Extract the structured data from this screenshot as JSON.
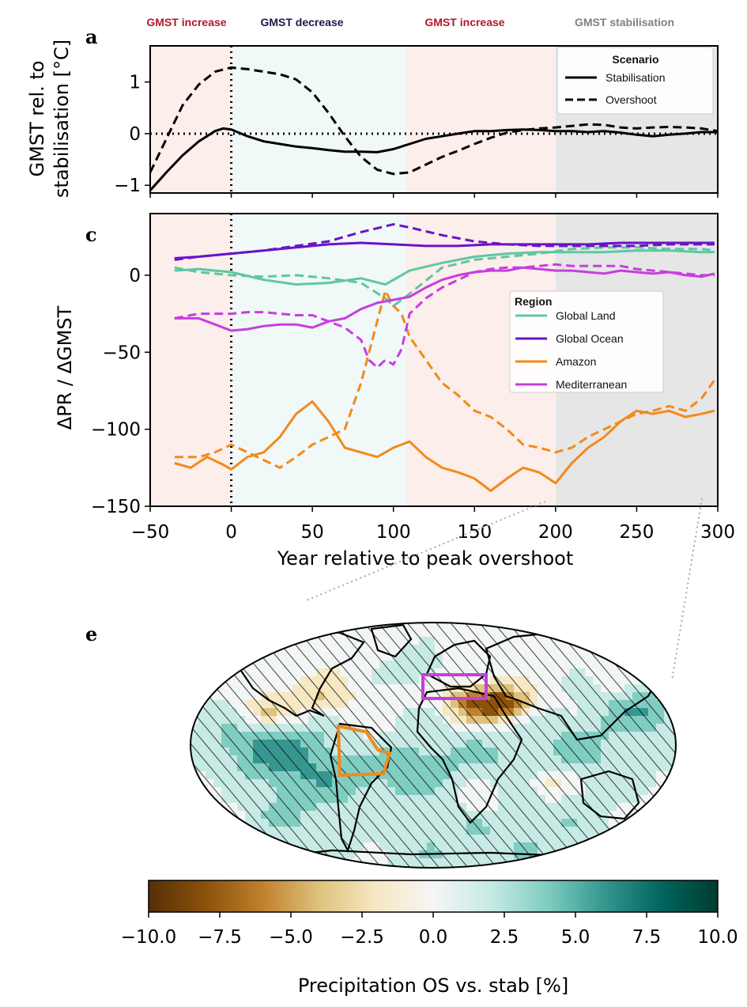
{
  "phases": [
    {
      "label": "GMST increase",
      "color": "#b2182b"
    },
    {
      "label": "GMST decrease",
      "color": "#1a1a4e"
    },
    {
      "label": "GMST increase",
      "color": "#b2182b"
    },
    {
      "label": "GMST stabilisation",
      "color": "#808080"
    }
  ],
  "colors": {
    "increase_bg": "#fbeeeb",
    "decrease_bg": "#f0f8f8",
    "stabilisation_bg": "#e6e6e6"
  },
  "panel_labels": {
    "a": "a",
    "c": "c",
    "e": "e"
  },
  "xaxis": {
    "label": "Year relative to peak overshoot",
    "ticks": [
      -50,
      0,
      50,
      100,
      150,
      200,
      250,
      300
    ],
    "tick_labels": [
      "−50",
      "0",
      "50",
      "100",
      "150",
      "200",
      "250",
      "300"
    ],
    "xlim": [
      -50,
      300
    ]
  },
  "chart_data": [
    {
      "id": "a",
      "type": "line",
      "ylabel_lines": [
        "GMST rel. to",
        "stabilisation [°C]"
      ],
      "ylim": [
        -1.15,
        1.7
      ],
      "yticks": [
        -1,
        0,
        1
      ],
      "ytick_labels": [
        "−1",
        "0",
        "1"
      ],
      "phase_bounds": [
        -50,
        0,
        108,
        200,
        300
      ],
      "legend": {
        "title": "Scenario",
        "entries": [
          {
            "label": "Stabilisation",
            "style": "solid"
          },
          {
            "label": "Overshoot",
            "style": "dashed"
          }
        ]
      },
      "series": [
        {
          "name": "Stabilisation",
          "style": "solid",
          "color": "#000000",
          "x": [
            -50,
            -40,
            -30,
            -20,
            -10,
            -5,
            0,
            10,
            20,
            30,
            40,
            50,
            60,
            70,
            80,
            90,
            100,
            110,
            120,
            130,
            140,
            150,
            160,
            170,
            180,
            190,
            200,
            210,
            220,
            230,
            240,
            250,
            260,
            270,
            280,
            290,
            300
          ],
          "y": [
            -1.1,
            -0.75,
            -0.42,
            -0.15,
            0.05,
            0.1,
            0.08,
            -0.05,
            -0.15,
            -0.2,
            -0.25,
            -0.28,
            -0.32,
            -0.35,
            -0.35,
            -0.36,
            -0.3,
            -0.2,
            -0.1,
            -0.05,
            0.0,
            0.05,
            0.05,
            0.07,
            0.08,
            0.07,
            0.05,
            0.05,
            0.03,
            0.05,
            0.02,
            -0.02,
            -0.05,
            -0.02,
            0.0,
            0.03,
            0.03
          ]
        },
        {
          "name": "Overshoot",
          "style": "dashed",
          "color": "#000000",
          "x": [
            -50,
            -40,
            -30,
            -20,
            -10,
            0,
            10,
            20,
            30,
            40,
            50,
            60,
            70,
            80,
            90,
            100,
            110,
            120,
            130,
            140,
            150,
            160,
            170,
            180,
            190,
            200,
            210,
            220,
            230,
            240,
            250,
            260,
            270,
            280,
            290,
            300
          ],
          "y": [
            -0.75,
            -0.1,
            0.55,
            0.95,
            1.2,
            1.28,
            1.25,
            1.2,
            1.15,
            1.05,
            0.8,
            0.4,
            -0.05,
            -0.45,
            -0.7,
            -0.78,
            -0.75,
            -0.6,
            -0.45,
            -0.33,
            -0.2,
            -0.08,
            0.02,
            0.07,
            0.1,
            0.12,
            0.15,
            0.18,
            0.17,
            0.12,
            0.1,
            0.12,
            0.13,
            0.12,
            0.1,
            0.05
          ]
        }
      ]
    },
    {
      "id": "c",
      "type": "line",
      "ylabel": "ΔPR / ΔGMST",
      "ylim": [
        -150,
        40
      ],
      "yticks": [
        -150,
        -100,
        -50,
        0
      ],
      "ytick_labels": [
        "−150",
        "−100",
        "−50",
        "0"
      ],
      "phase_bounds": [
        -50,
        0,
        108,
        200,
        300
      ],
      "legend": {
        "title": "Region",
        "entries": [
          {
            "label": "Global Land",
            "color": "#5fc7a2"
          },
          {
            "label": "Global Ocean",
            "color": "#6a14c8"
          },
          {
            "label": "Amazon",
            "color": "#f28a1a"
          },
          {
            "label": "Mediterranean",
            "color": "#c83de0"
          }
        ]
      },
      "series": [
        {
          "name": "Global Land",
          "scenario": "Stabilisation",
          "color": "#5fc7a2",
          "style": "solid",
          "x": [
            -35,
            -20,
            0,
            20,
            40,
            60,
            80,
            95,
            110,
            130,
            150,
            170,
            190,
            210,
            230,
            250,
            270,
            290,
            298
          ],
          "y": [
            3,
            4,
            2,
            -3,
            -6,
            -5,
            -2,
            -6,
            3,
            8,
            12,
            14,
            15,
            15,
            15,
            16,
            16,
            15,
            15
          ]
        },
        {
          "name": "Global Land",
          "scenario": "Overshoot",
          "color": "#5fc7a2",
          "style": "dashed",
          "x": [
            -35,
            -20,
            0,
            20,
            40,
            60,
            80,
            95,
            100,
            110,
            130,
            150,
            170,
            190,
            210,
            230,
            250,
            270,
            290,
            298
          ],
          "y": [
            5,
            2,
            0,
            -1,
            0,
            -2,
            -5,
            -15,
            -20,
            -12,
            5,
            10,
            12,
            14,
            17,
            18,
            18,
            17,
            17,
            16
          ]
        },
        {
          "name": "Global Ocean",
          "scenario": "Stabilisation",
          "color": "#6a14c8",
          "style": "solid",
          "x": [
            -35,
            -20,
            0,
            20,
            40,
            60,
            80,
            100,
            120,
            140,
            160,
            180,
            200,
            220,
            240,
            260,
            280,
            298
          ],
          "y": [
            11,
            12,
            14,
            16,
            18,
            20,
            21,
            20,
            19,
            19,
            20,
            20,
            20,
            20,
            21,
            21,
            21,
            21
          ]
        },
        {
          "name": "Global Ocean",
          "scenario": "Overshoot",
          "color": "#6a14c8",
          "style": "dashed",
          "x": [
            -35,
            -20,
            0,
            20,
            40,
            60,
            80,
            100,
            110,
            130,
            150,
            170,
            190,
            210,
            230,
            250,
            270,
            290,
            298
          ],
          "y": [
            10,
            12,
            14,
            16,
            19,
            22,
            28,
            33,
            31,
            26,
            22,
            20,
            19,
            19,
            19,
            19,
            20,
            20,
            20
          ]
        },
        {
          "name": "Amazon",
          "scenario": "Stabilisation",
          "color": "#f28a1a",
          "style": "solid",
          "x": [
            -35,
            -25,
            -15,
            -5,
            0,
            10,
            20,
            30,
            40,
            50,
            60,
            70,
            80,
            90,
            100,
            110,
            120,
            130,
            140,
            150,
            160,
            170,
            180,
            190,
            200,
            210,
            220,
            230,
            240,
            250,
            260,
            270,
            280,
            290,
            298
          ],
          "y": [
            -122,
            -125,
            -118,
            -123,
            -126,
            -118,
            -115,
            -105,
            -90,
            -82,
            -95,
            -112,
            -115,
            -118,
            -112,
            -108,
            -118,
            -125,
            -128,
            -132,
            -140,
            -132,
            -125,
            -128,
            -135,
            -122,
            -112,
            -105,
            -95,
            -88,
            -90,
            -88,
            -92,
            -90,
            -88
          ]
        },
        {
          "name": "Amazon",
          "scenario": "Overshoot",
          "color": "#f28a1a",
          "style": "dashed",
          "x": [
            -35,
            -20,
            -10,
            0,
            10,
            20,
            30,
            40,
            50,
            60,
            70,
            80,
            90,
            95,
            100,
            105,
            110,
            120,
            130,
            140,
            150,
            160,
            170,
            180,
            190,
            200,
            210,
            220,
            230,
            240,
            250,
            260,
            270,
            280,
            290,
            298
          ],
          "y": [
            -118,
            -118,
            -115,
            -110,
            -115,
            -120,
            -125,
            -118,
            -110,
            -105,
            -100,
            -70,
            -30,
            -10,
            -20,
            -25,
            -40,
            -55,
            -70,
            -78,
            -88,
            -92,
            -100,
            -110,
            -112,
            -115,
            -112,
            -105,
            -100,
            -95,
            -90,
            -88,
            -85,
            -88,
            -80,
            -68
          ]
        },
        {
          "name": "Mediterranean",
          "scenario": "Stabilisation",
          "color": "#c83de0",
          "style": "solid",
          "x": [
            -35,
            -20,
            -10,
            0,
            10,
            20,
            30,
            40,
            50,
            60,
            70,
            80,
            90,
            100,
            110,
            120,
            130,
            140,
            150,
            160,
            170,
            180,
            190,
            200,
            210,
            220,
            230,
            240,
            250,
            260,
            270,
            280,
            290,
            298
          ],
          "y": [
            -28,
            -28,
            -32,
            -36,
            -35,
            -33,
            -32,
            -32,
            -34,
            -30,
            -28,
            -22,
            -18,
            -16,
            -14,
            -8,
            -3,
            0,
            2,
            3,
            3,
            5,
            4,
            3,
            3,
            2,
            1,
            3,
            2,
            1,
            2,
            0,
            -1,
            1
          ]
        },
        {
          "name": "Mediterranean",
          "scenario": "Overshoot",
          "color": "#c83de0",
          "style": "dashed",
          "x": [
            -35,
            -20,
            -10,
            0,
            10,
            20,
            30,
            40,
            50,
            60,
            70,
            80,
            85,
            90,
            95,
            100,
            105,
            110,
            120,
            130,
            140,
            150,
            160,
            170,
            180,
            190,
            200,
            210,
            220,
            230,
            240,
            250,
            260,
            270,
            280,
            290,
            298
          ],
          "y": [
            -28,
            -25,
            -25,
            -25,
            -24,
            -24,
            -25,
            -26,
            -26,
            -30,
            -34,
            -42,
            -55,
            -60,
            -55,
            -58,
            -48,
            -25,
            -15,
            -8,
            -3,
            2,
            4,
            5,
            5,
            6,
            7,
            6,
            6,
            6,
            6,
            4,
            3,
            2,
            1,
            0,
            0
          ]
        }
      ]
    },
    {
      "id": "e",
      "type": "heatmap",
      "description_units": "Precipitation OS vs. stab [%]",
      "colorbar": {
        "label": "Precipitation OS vs. stab [%]",
        "range": [
          -10.0,
          10.0
        ],
        "ticks": [
          -10.0,
          -7.5,
          -5.0,
          -2.5,
          0.0,
          2.5,
          5.0,
          7.5,
          10.0
        ],
        "tick_labels": [
          "−10.0",
          "−7.5",
          "−5.0",
          "−2.5",
          "0.0",
          "2.5",
          "5.0",
          "7.5",
          "10.0"
        ],
        "colors": [
          "#543005",
          "#8c510a",
          "#bf812d",
          "#dfc27d",
          "#f6e8c3",
          "#f5f5f5",
          "#c7eae5",
          "#80cdc1",
          "#35978f",
          "#01665e",
          "#003c30"
        ]
      },
      "regions": [
        {
          "name": "Amazon",
          "color": "#f28a1a"
        },
        {
          "name": "Mediterranean",
          "color": "#c83de0"
        }
      ]
    }
  ]
}
